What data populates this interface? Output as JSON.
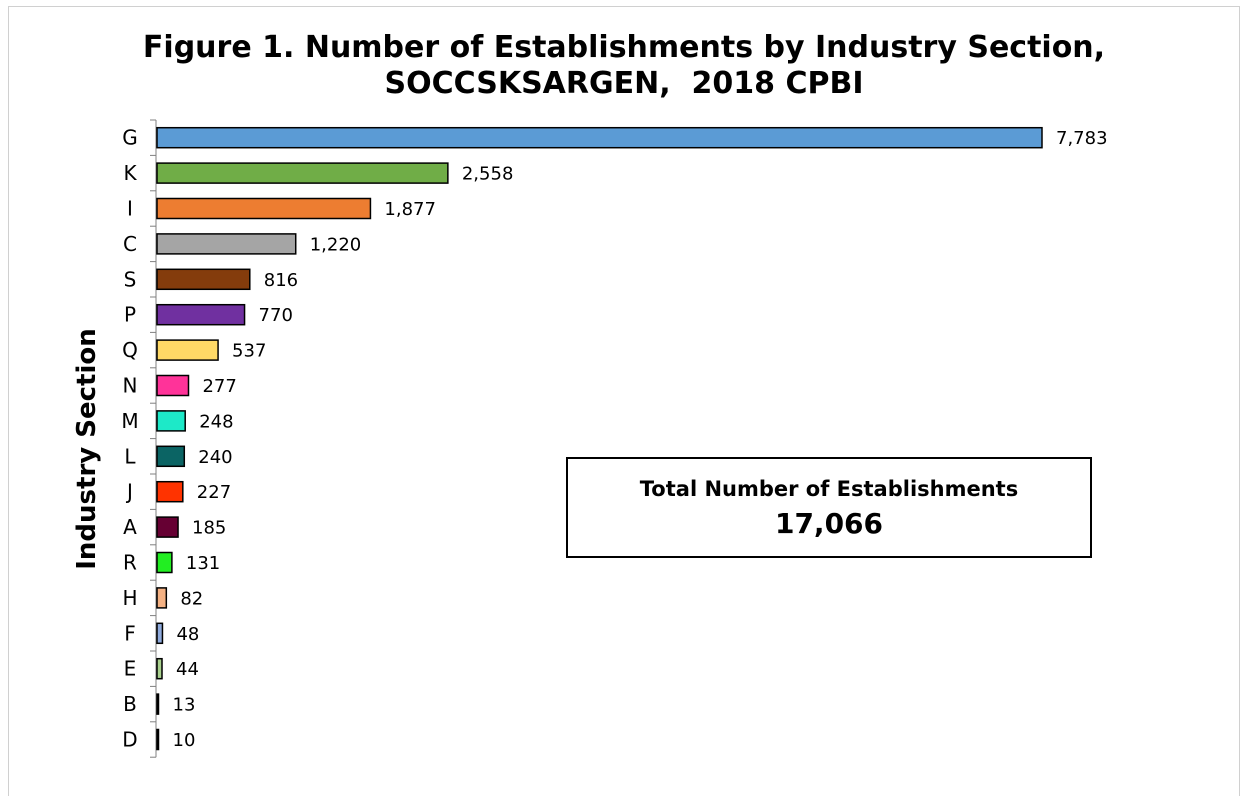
{
  "chart_data": {
    "type": "bar",
    "orientation": "horizontal",
    "title_lines": [
      "Figure 1. Number of Establishments by Industry Section,",
      "SOCCSKSARGEN,  2018 CPBI"
    ],
    "ylabel": "Industry Section",
    "xlabel": "",
    "categories": [
      "G",
      "K",
      "I",
      "C",
      "S",
      "P",
      "Q",
      "N",
      "M",
      "L",
      "J",
      "A",
      "R",
      "H",
      "F",
      "E",
      "B",
      "D"
    ],
    "values": [
      7783,
      2558,
      1877,
      1220,
      816,
      770,
      537,
      277,
      248,
      240,
      227,
      185,
      131,
      82,
      48,
      44,
      13,
      10
    ],
    "value_labels": [
      "7,783",
      "2,558",
      "1,877",
      "1,220",
      "816",
      "770",
      "537",
      "277",
      "248",
      "240",
      "227",
      "185",
      "131",
      "82",
      "48",
      "44",
      "13",
      "10"
    ],
    "colors": [
      "#5b9bd5",
      "#70ad47",
      "#ed7d31",
      "#a5a5a5",
      "#843c0c",
      "#7030a0",
      "#ffd966",
      "#ff3399",
      "#1de9c8",
      "#0b6464",
      "#ff3300",
      "#660033",
      "#22ee22",
      "#f4b183",
      "#8faadc",
      "#a9d18e",
      "#404040",
      "#404040"
    ],
    "xlim": [
      0,
      7783
    ],
    "grid": false,
    "legend": "none"
  },
  "annotation": {
    "label": "Total Number of Establishments",
    "value": "17,066"
  }
}
